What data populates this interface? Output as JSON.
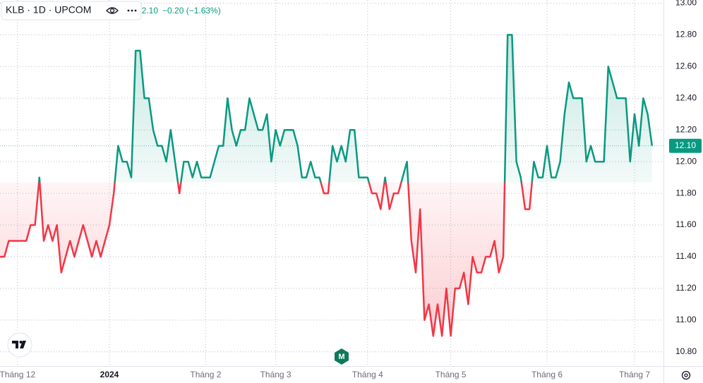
{
  "chart_data": {
    "type": "baseline",
    "legend": {
      "symbol": "KLB · 1D · UPCOM",
      "price": "12.10",
      "change": "−0.20 (−1.63%)"
    },
    "categories": [
      null,
      null,
      null,
      null,
      "Tháng 12",
      null,
      null,
      null,
      null,
      null,
      null,
      null,
      null,
      null,
      null,
      null,
      null,
      null,
      null,
      null,
      null,
      null,
      null,
      null,
      null,
      "2024",
      null,
      null,
      null,
      null,
      null,
      null,
      null,
      null,
      null,
      null,
      null,
      null,
      null,
      null,
      null,
      null,
      null,
      null,
      null,
      null,
      null,
      "Tháng 2",
      null,
      null,
      null,
      null,
      null,
      null,
      null,
      null,
      null,
      null,
      null,
      null,
      null,
      null,
      null,
      "Tháng 3",
      null,
      null,
      null,
      null,
      null,
      null,
      null,
      null,
      null,
      null,
      null,
      null,
      null,
      null,
      null,
      null,
      null,
      null,
      null,
      null,
      "Tháng 4",
      null,
      null,
      null,
      null,
      null,
      null,
      null,
      null,
      null,
      null,
      null,
      null,
      null,
      null,
      null,
      null,
      null,
      null,
      "Tháng 5",
      null,
      null,
      null,
      null,
      null,
      null,
      null,
      null,
      null,
      null,
      null,
      null,
      null,
      null,
      null,
      null,
      null,
      null,
      null,
      null,
      null,
      "Tháng 6",
      null,
      null,
      null,
      null,
      null,
      null,
      null,
      null,
      null,
      null,
      null,
      null,
      null,
      null,
      null,
      null,
      null,
      null,
      null,
      "Tháng 7",
      null,
      null,
      null,
      null
    ],
    "values": [
      11.4,
      11.4,
      11.5,
      11.5,
      11.5,
      11.5,
      11.5,
      11.6,
      11.6,
      11.9,
      11.5,
      11.6,
      11.5,
      11.6,
      11.3,
      11.4,
      11.5,
      11.4,
      11.5,
      11.6,
      11.5,
      11.4,
      11.5,
      11.4,
      11.5,
      11.6,
      11.8,
      12.1,
      12.0,
      12.0,
      11.9,
      12.7,
      12.7,
      12.4,
      12.4,
      12.2,
      12.1,
      12.1,
      12.0,
      12.2,
      12.0,
      11.8,
      12.0,
      12.0,
      11.9,
      12.0,
      11.9,
      11.9,
      11.9,
      12.0,
      12.1,
      12.1,
      12.4,
      12.2,
      12.1,
      12.2,
      12.2,
      12.4,
      12.3,
      12.2,
      12.2,
      12.3,
      12.0,
      12.2,
      12.1,
      12.2,
      12.2,
      12.2,
      12.1,
      11.9,
      11.9,
      12.0,
      11.9,
      11.9,
      11.8,
      11.8,
      12.1,
      12.0,
      12.1,
      12.0,
      12.2,
      12.2,
      11.9,
      11.9,
      11.9,
      11.8,
      11.8,
      11.7,
      11.9,
      11.7,
      11.8,
      11.8,
      11.9,
      12.0,
      11.5,
      11.3,
      11.7,
      11.0,
      11.1,
      10.9,
      11.1,
      10.9,
      11.2,
      10.9,
      11.2,
      11.2,
      11.3,
      11.1,
      11.4,
      11.3,
      11.3,
      11.4,
      11.4,
      11.5,
      11.3,
      11.4,
      12.8,
      12.8,
      12.0,
      11.9,
      11.7,
      11.7,
      12.0,
      11.9,
      11.9,
      12.1,
      11.9,
      11.9,
      12.0,
      12.3,
      12.5,
      12.4,
      12.4,
      12.4,
      12.0,
      12.1,
      12.0,
      12.0,
      12.0,
      12.6,
      12.5,
      12.4,
      12.4,
      12.4,
      12.0,
      12.3,
      12.1,
      12.4,
      12.3,
      12.1
    ],
    "baseline": 11.87,
    "up_color": "#089981",
    "down_color": "#f23645",
    "ylim": [
      10.71,
      13.02
    ],
    "yticks": [
      {
        "value": 10.8,
        "label": "10.80"
      },
      {
        "value": 11.0,
        "label": "11.00"
      },
      {
        "value": 11.2,
        "label": "11.20"
      },
      {
        "value": 11.4,
        "label": "11.40"
      },
      {
        "value": 11.6,
        "label": "11.60"
      },
      {
        "value": 11.8,
        "label": "11.80"
      },
      {
        "value": 12.0,
        "label": "12.00"
      },
      {
        "value": 12.2,
        "label": "12.20"
      },
      {
        "value": 12.4,
        "label": "12.40"
      },
      {
        "value": 12.6,
        "label": "12.60"
      },
      {
        "value": 12.8,
        "label": "12.80"
      },
      {
        "value": 13.0,
        "label": "13.00"
      }
    ],
    "grid": true
  }
}
